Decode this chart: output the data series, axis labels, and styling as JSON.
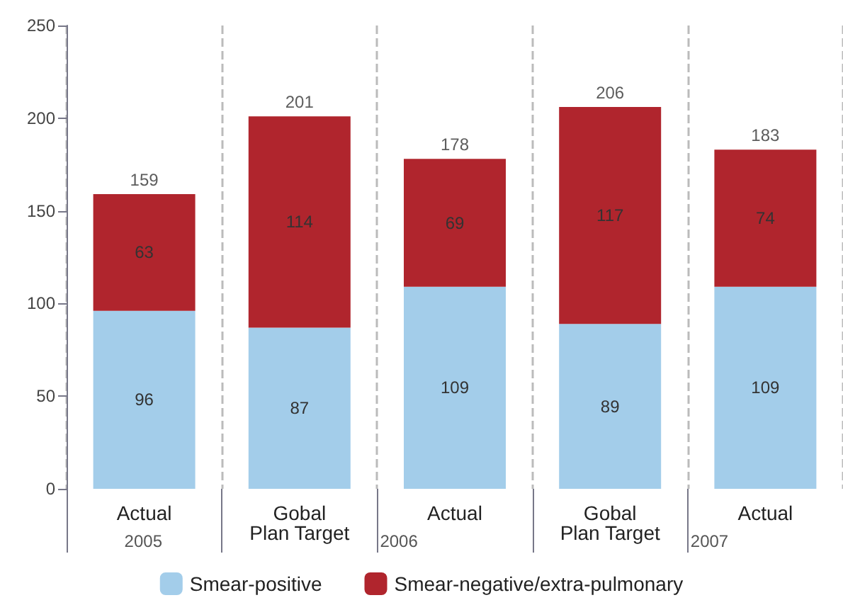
{
  "chart_data": {
    "type": "bar",
    "stacked": true,
    "categories": [
      "Actual",
      "Gobal\nPlan Target",
      "Actual",
      "Gobal\nPlan Target",
      "Actual"
    ],
    "series": [
      {
        "name": "Smear-positive",
        "color": "#a3cdea",
        "values": [
          96,
          87,
          109,
          89,
          109
        ]
      },
      {
        "name": "Smear-negative/extra-pulmonary",
        "color": "#b0252d",
        "values": [
          63,
          114,
          69,
          117,
          74
        ]
      }
    ],
    "totals": [
      "159",
      "201",
      "178",
      "206",
      "183"
    ],
    "data_labels": true,
    "ylim": [
      0,
      250
    ],
    "yticks": [
      0,
      50,
      100,
      150,
      200,
      250
    ],
    "grid": "x",
    "legend": "bottom",
    "annotations": [
      "2005",
      "2006",
      "2007"
    ]
  }
}
